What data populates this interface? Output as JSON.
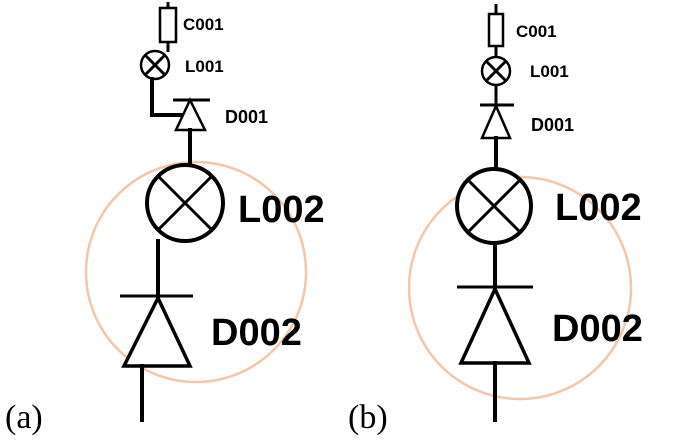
{
  "diagrams": [
    {
      "caption": "(a)",
      "labels": {
        "c001": "C001",
        "l001": "L001",
        "d001": "D001",
        "l002": "L002",
        "d002": "D002"
      }
    },
    {
      "caption": "(b)",
      "labels": {
        "c001": "C001",
        "l001": "L001",
        "d001": "D001",
        "l002": "L002",
        "d002": "D002"
      }
    }
  ],
  "colors": {
    "line": "#000000",
    "highlight_circle": "#f2c7ab",
    "background": "#ffffff"
  }
}
